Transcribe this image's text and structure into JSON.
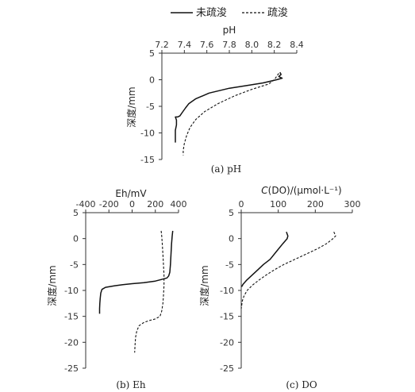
{
  "legend": {
    "solid_label": "未疏浚",
    "dashed_label": "疏浚"
  },
  "chart_data": [
    {
      "type": "line",
      "panel": "a",
      "caption": "(a) pH",
      "xlabel": "pH",
      "ylabel": "深度/mm",
      "xlim": [
        7.2,
        8.4
      ],
      "ylim": [
        -15,
        5
      ],
      "x_ticks": [
        "7.2",
        "7.4",
        "7.6",
        "7.8",
        "8.0",
        "8.2",
        "8.4"
      ],
      "y_ticks": [
        "5",
        "0",
        "-5",
        "-10",
        "-15"
      ],
      "series": [
        {
          "name": "未疏浚",
          "style": "solid",
          "points": [
            [
              8.25,
              1.4
            ],
            [
              8.26,
              1.0
            ],
            [
              8.24,
              0.6
            ],
            [
              8.27,
              0.3
            ],
            [
              8.22,
              0.0
            ],
            [
              8.1,
              -0.6
            ],
            [
              7.98,
              -1.0
            ],
            [
              7.8,
              -1.6
            ],
            [
              7.62,
              -2.5
            ],
            [
              7.5,
              -3.6
            ],
            [
              7.44,
              -4.5
            ],
            [
              7.41,
              -5.3
            ],
            [
              7.38,
              -6.2
            ],
            [
              7.36,
              -6.8
            ],
            [
              7.34,
              -7.0
            ],
            [
              7.32,
              -7.0
            ],
            [
              7.33,
              -7.6
            ],
            [
              7.33,
              -8.5
            ],
            [
              7.32,
              -9.5
            ],
            [
              7.32,
              -10.5
            ],
            [
              7.32,
              -11.8
            ]
          ]
        },
        {
          "name": "疏浚",
          "style": "dashed",
          "points": [
            [
              8.24,
              1.2
            ],
            [
              8.22,
              0.6
            ],
            [
              8.2,
              0.0
            ],
            [
              8.15,
              -0.8
            ],
            [
              8.0,
              -1.8
            ],
            [
              7.85,
              -3.0
            ],
            [
              7.7,
              -4.5
            ],
            [
              7.58,
              -6.0
            ],
            [
              7.5,
              -7.5
            ],
            [
              7.45,
              -9.0
            ],
            [
              7.42,
              -10.5
            ],
            [
              7.4,
              -12.0
            ],
            [
              7.39,
              -13.3
            ],
            [
              7.39,
              -14.2
            ]
          ]
        }
      ]
    },
    {
      "type": "line",
      "panel": "b",
      "caption": "(b) Eh",
      "xlabel": "Eh/mV",
      "ylabel": "深度/mm",
      "xlim": [
        -400,
        400
      ],
      "ylim": [
        -25,
        5
      ],
      "x_ticks": [
        "-400",
        "-200",
        "0",
        "200",
        "400"
      ],
      "y_ticks": [
        "5",
        "0",
        "-5",
        "-10",
        "-15",
        "-20",
        "-25"
      ],
      "series": [
        {
          "name": "未疏浚",
          "style": "solid",
          "points": [
            [
              350,
              1.5
            ],
            [
              345,
              0.5
            ],
            [
              340,
              -1.0
            ],
            [
              335,
              -3.0
            ],
            [
              330,
              -5.0
            ],
            [
              325,
              -6.5
            ],
            [
              315,
              -7.2
            ],
            [
              300,
              -7.6
            ],
            [
              250,
              -7.9
            ],
            [
              200,
              -8.2
            ],
            [
              100,
              -8.5
            ],
            [
              0,
              -8.7
            ],
            [
              -80,
              -8.9
            ],
            [
              -150,
              -9.1
            ],
            [
              -230,
              -9.4
            ],
            [
              -260,
              -9.8
            ],
            [
              -270,
              -10.5
            ],
            [
              -275,
              -11.5
            ],
            [
              -278,
              -12.5
            ],
            [
              -280,
              -13.5
            ],
            [
              -280,
              -14.5
            ]
          ]
        },
        {
          "name": "疏浚",
          "style": "dashed",
          "points": [
            [
              250,
              1.5
            ],
            [
              255,
              0.5
            ],
            [
              260,
              -1.0
            ],
            [
              265,
              -3.0
            ],
            [
              270,
              -5.0
            ],
            [
              275,
              -7.0
            ],
            [
              275,
              -9.0
            ],
            [
              270,
              -11.0
            ],
            [
              265,
              -12.5
            ],
            [
              255,
              -14.0
            ],
            [
              240,
              -15.0
            ],
            [
              200,
              -15.5
            ],
            [
              150,
              -15.8
            ],
            [
              100,
              -16.2
            ],
            [
              60,
              -16.8
            ],
            [
              40,
              -17.8
            ],
            [
              30,
              -19.0
            ],
            [
              25,
              -20.5
            ],
            [
              22,
              -22.0
            ]
          ]
        }
      ]
    },
    {
      "type": "line",
      "panel": "c",
      "caption": "(c) DO",
      "xlabel": "C(DO)/(μmol·L⁻¹)",
      "ylabel": "深度/mm",
      "xlim": [
        0,
        300
      ],
      "ylim": [
        -25,
        5
      ],
      "x_ticks": [
        "0",
        "100",
        "200",
        "300"
      ],
      "y_ticks": [
        "5",
        "0",
        "-5",
        "-10",
        "-15",
        "-20",
        "-25"
      ],
      "series": [
        {
          "name": "未疏浚",
          "style": "solid",
          "points": [
            [
              122,
              1.3
            ],
            [
              126,
              0.5
            ],
            [
              124,
              0.0
            ],
            [
              112,
              -1.0
            ],
            [
              95,
              -2.5
            ],
            [
              78,
              -4.0
            ],
            [
              60,
              -5.0
            ],
            [
              45,
              -6.0
            ],
            [
              30,
              -7.0
            ],
            [
              15,
              -8.0
            ],
            [
              5,
              -8.8
            ],
            [
              1,
              -9.3
            ]
          ]
        },
        {
          "name": "疏浚",
          "style": "dashed",
          "points": [
            [
              250,
              1.3
            ],
            [
              255,
              0.5
            ],
            [
              248,
              0.0
            ],
            [
              230,
              -1.0
            ],
            [
              205,
              -2.0
            ],
            [
              175,
              -3.0
            ],
            [
              145,
              -4.0
            ],
            [
              115,
              -5.0
            ],
            [
              90,
              -6.0
            ],
            [
              68,
              -7.0
            ],
            [
              48,
              -8.0
            ],
            [
              30,
              -9.0
            ],
            [
              16,
              -10.0
            ],
            [
              8,
              -11.0
            ],
            [
              3,
              -12.0
            ],
            [
              1,
              -13.0
            ],
            [
              0,
              -13.5
            ]
          ]
        }
      ]
    }
  ]
}
